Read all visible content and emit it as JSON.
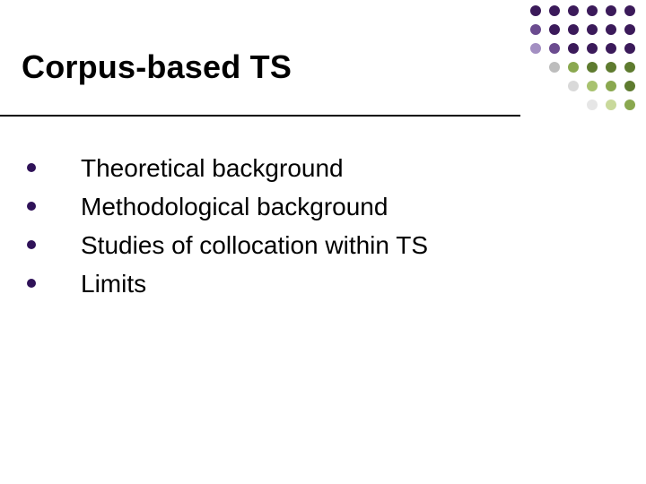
{
  "title": "Corpus-based TS",
  "title_fontsize": 36,
  "title_color": "#000000",
  "underline_color": "#000000",
  "body_fontsize": 28,
  "body_color": "#000000",
  "bullet_color": "#2f1258",
  "bullets": [
    "Theoretical background",
    "Methodological background",
    "Studies of collocation within TS",
    "Limits"
  ],
  "background_color": "#ffffff",
  "decor": {
    "cols": 6,
    "rows": 6,
    "dot_size": 12,
    "colors": [
      [
        "#3b1a5a",
        "#3b1a5a",
        "#3b1a5a",
        "#3b1a5a",
        "#3b1a5a",
        "#3b1a5a"
      ],
      [
        "#6b4b8f",
        "#3b1a5a",
        "#3b1a5a",
        "#3b1a5a",
        "#3b1a5a",
        "#3b1a5a"
      ],
      [
        "#a38fc2",
        "#6b4b8f",
        "#3b1a5a",
        "#3b1a5a",
        "#3b1a5a",
        "#3b1a5a"
      ],
      [
        "",
        "#bdbdbd",
        "#8aa84f",
        "#5e7b2f",
        "#5e7b2f",
        "#5e7b2f"
      ],
      [
        "",
        "",
        "#d9d9d9",
        "#a8c26f",
        "#8aa84f",
        "#5e7b2f"
      ],
      [
        "",
        "",
        "",
        "#e6e6e6",
        "#c9d99b",
        "#8aa84f"
      ]
    ]
  }
}
